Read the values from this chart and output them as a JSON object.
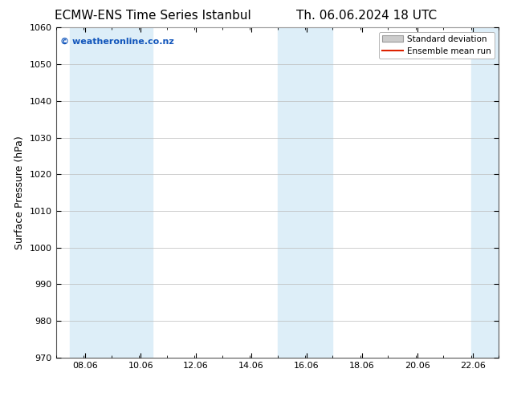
{
  "title_left": "ECMW-ENS Time Series Istanbul",
  "title_right": "Th. 06.06.2024 18 UTC",
  "ylabel": "Surface Pressure (hPa)",
  "ylim": [
    970,
    1060
  ],
  "yticks": [
    970,
    980,
    990,
    1000,
    1010,
    1020,
    1030,
    1040,
    1050,
    1060
  ],
  "xlim_start": 7.0,
  "xlim_end": 23.0,
  "xticks": [
    8.06,
    10.06,
    12.06,
    14.06,
    16.06,
    18.06,
    20.06,
    22.06
  ],
  "xtick_labels": [
    "08.06",
    "10.06",
    "12.06",
    "14.06",
    "16.06",
    "18.06",
    "20.06",
    "22.06"
  ],
  "shaded_bands": [
    {
      "x_start": 7.5,
      "x_end": 9.0,
      "color": "#ddeef8"
    },
    {
      "x_start": 9.0,
      "x_end": 10.5,
      "color": "#ddeef8"
    },
    {
      "x_start": 15.0,
      "x_end": 16.0,
      "color": "#ddeef8"
    },
    {
      "x_start": 16.0,
      "x_end": 17.0,
      "color": "#ddeef8"
    },
    {
      "x_start": 22.0,
      "x_end": 23.1,
      "color": "#ddeef8"
    }
  ],
  "watermark_text": "© weatheronline.co.nz",
  "watermark_color": "#1155bb",
  "bg_color": "#ffffff",
  "plot_bg_color": "#ffffff",
  "grid_color": "#bbbbbb",
  "title_fontsize": 11,
  "tick_fontsize": 8,
  "ylabel_fontsize": 9,
  "legend_std_facecolor": "#cccccc",
  "legend_std_edgecolor": "#999999",
  "legend_mean_color": "#dd2200",
  "spine_color": "#555555"
}
